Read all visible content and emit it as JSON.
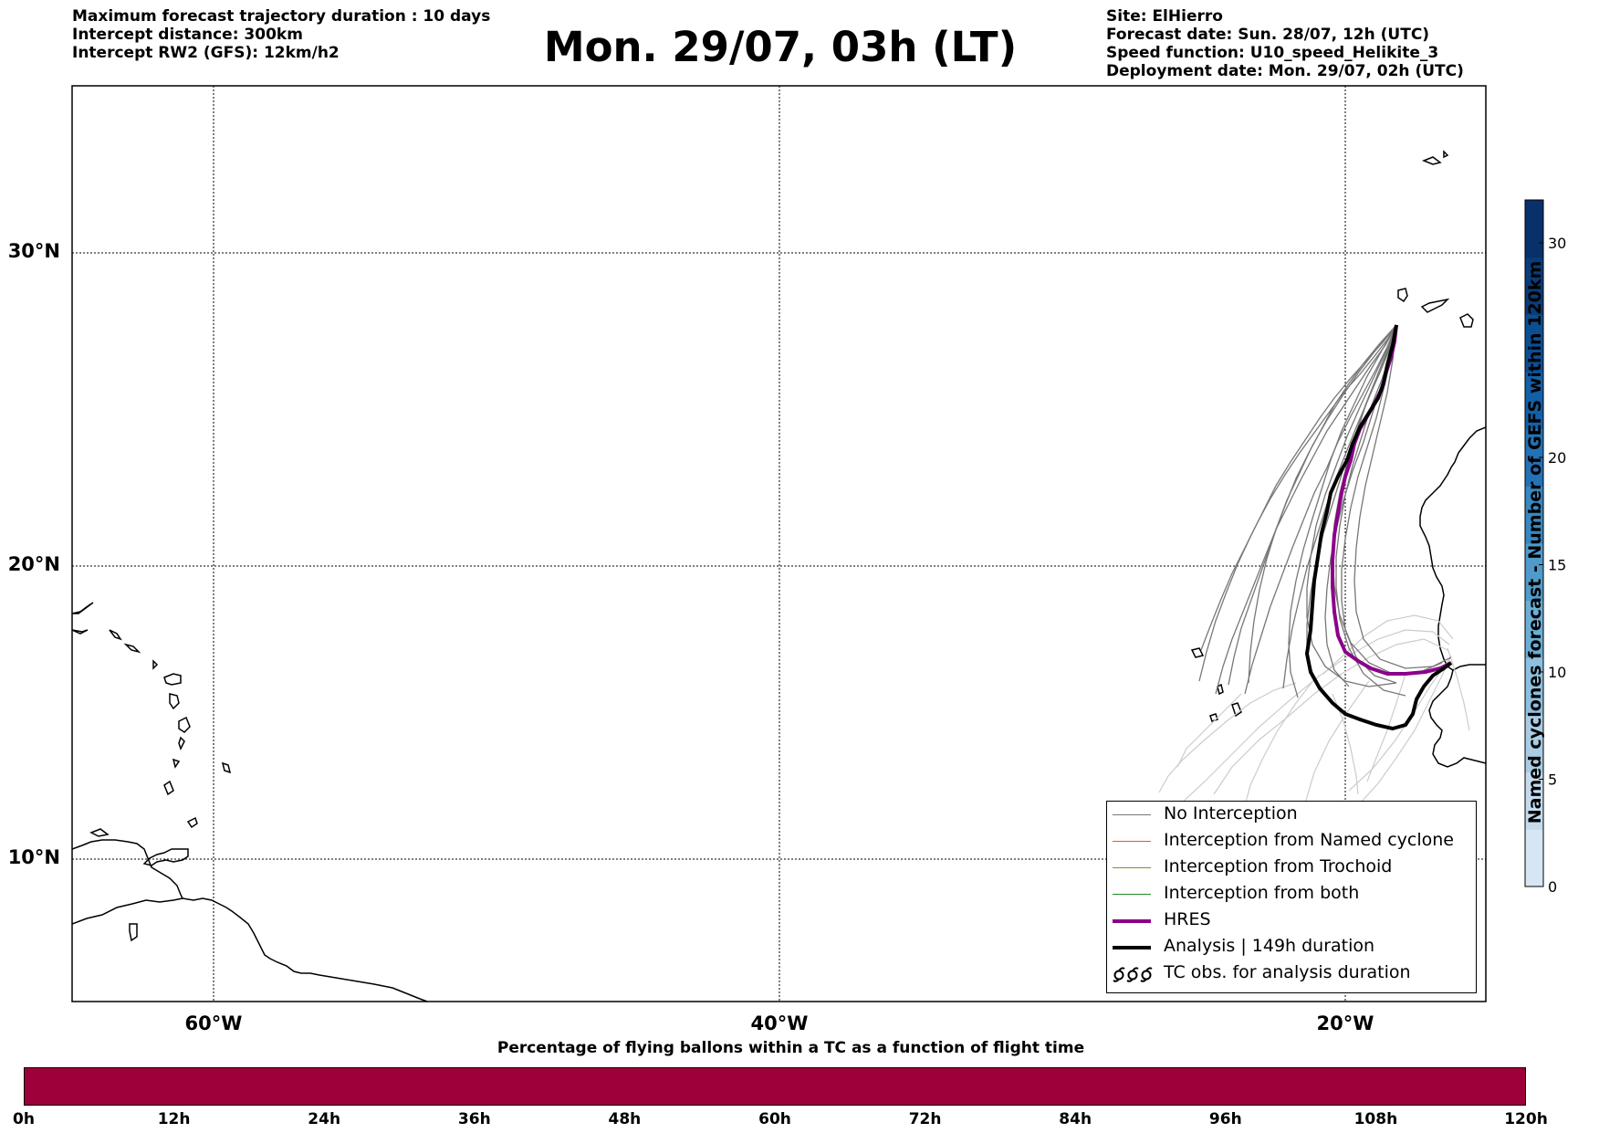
{
  "header": {
    "left_lines": [
      "Maximum forecast trajectory duration : 10 days",
      "Intercept distance: 300km",
      "Intercept RW2 (GFS):  12km/h2"
    ],
    "title": "Mon. 29/07, 03h (LT)",
    "right_lines": [
      "Site: ElHierro",
      "Forecast date: Sun. 28/07, 12h (UTC)",
      "Speed function: U10_speed_Helikite_3",
      "Deployment date: Mon. 29/07, 02h (UTC)"
    ]
  },
  "map": {
    "lat_labels": [
      "30°N",
      "20°N",
      "10°N"
    ],
    "lon_labels": [
      "60°W",
      "40°W",
      "20°W"
    ],
    "extent": {
      "lon_min": -65,
      "lon_max": -15,
      "lat_min": 5.5,
      "lat_max": 35.3
    },
    "gridlines": {
      "lon": [
        -60,
        -40,
        -20
      ],
      "lat": [
        10,
        20,
        30
      ],
      "style": "dotted"
    },
    "colors": {
      "no_interception": "#777777",
      "faint_tracks": "#cccccc",
      "named_cyclone": "#ff5500",
      "trochoid": "#8a8a2a",
      "both": "#228b22",
      "hres": "#8b008b",
      "analysis": "#000000"
    }
  },
  "legend": {
    "items": [
      {
        "label": "No Interception",
        "color": "#777777",
        "style": "thin"
      },
      {
        "label": "Interception from Named cyclone",
        "color": "#ff5500",
        "style": "thin"
      },
      {
        "label": "Interception from Trochoid",
        "color": "#8a8a2a",
        "style": "thin"
      },
      {
        "label": "Interception from both",
        "color": "#228b22",
        "style": "thin"
      },
      {
        "label": "HRES",
        "color": "#8b008b",
        "style": "thick"
      },
      {
        "label": "Analysis | 149h duration",
        "color": "#000000",
        "style": "thick"
      },
      {
        "label": "TC obs. for analysis duration",
        "color": "#000000",
        "style": "symbol",
        "icon": "cyclone-symbols"
      }
    ]
  },
  "colorbar": {
    "title": "Named cyclones forecast - Number of GEFS within 120km",
    "ticks": [
      "0",
      "5",
      "10",
      "15",
      "20",
      "30"
    ],
    "tick_values": [
      0,
      5,
      10,
      15,
      20,
      30
    ],
    "max": 32,
    "colors": [
      "#d6e6f4",
      "#c4dbee",
      "#a9cce4",
      "#8dbfdf",
      "#6aaed6",
      "#4f9bcb",
      "#3787c0",
      "#2372b6",
      "#1261a8",
      "#0b4f93",
      "#083d7a",
      "#08306b"
    ]
  },
  "bottom_bar": {
    "title": "Percentage of flying ballons within a TC as a function of flight time",
    "tick_labels": [
      "0h",
      "12h",
      "24h",
      "36h",
      "48h",
      "60h",
      "72h",
      "84h",
      "96h",
      "108h",
      "120h"
    ],
    "fill_color": "#9e003a"
  }
}
